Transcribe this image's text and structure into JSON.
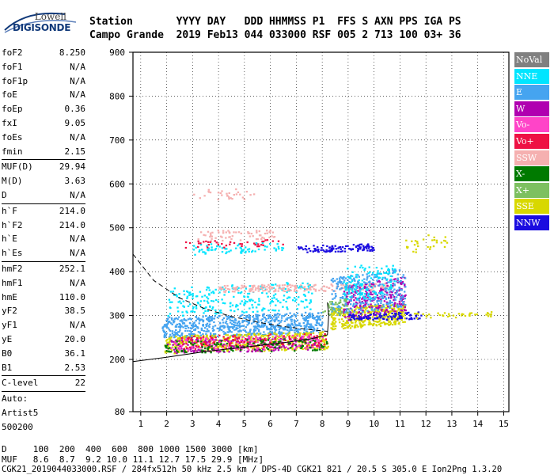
{
  "logo": {
    "line1": "Lowell",
    "line2": "DIGISONDE"
  },
  "header": {
    "row1": "Station       YYYY DAY   DDD HHMMSS P1  FFS S AXN PPS IGA PS",
    "row2": "Campo Grande  2019 Feb13 044 033000 RSF 005 2 713 100 03+ 36"
  },
  "params": [
    [
      {
        "label": "foF2",
        "value": "8.250"
      },
      {
        "label": "foF1",
        "value": "N/A"
      },
      {
        "label": "foF1p",
        "value": "N/A"
      },
      {
        "label": "foE",
        "value": "N/A"
      },
      {
        "label": "foEp",
        "value": "0.36"
      },
      {
        "label": "fxI",
        "value": "9.05"
      },
      {
        "label": "foEs",
        "value": "N/A"
      },
      {
        "label": "fmin",
        "value": "2.15"
      }
    ],
    [
      {
        "label": "MUF(D)",
        "value": "29.94"
      },
      {
        "label": "M(D)",
        "value": "3.63"
      },
      {
        "label": "D",
        "value": "N/A"
      }
    ],
    [
      {
        "label": "h`F",
        "value": "214.0"
      },
      {
        "label": "h`F2",
        "value": "214.0"
      },
      {
        "label": "h`E",
        "value": "N/A"
      },
      {
        "label": "h`Es",
        "value": "N/A"
      }
    ],
    [
      {
        "label": "hmF2",
        "value": "252.1"
      },
      {
        "label": "hmF1",
        "value": "N/A"
      },
      {
        "label": "hmE",
        "value": "110.0"
      },
      {
        "label": "yF2",
        "value": "38.5"
      },
      {
        "label": "yF1",
        "value": "N/A"
      },
      {
        "label": "yE",
        "value": "20.0"
      },
      {
        "label": "B0",
        "value": "36.1"
      },
      {
        "label": "B1",
        "value": "2.53"
      }
    ],
    [
      {
        "label": "C-level",
        "value": "22"
      }
    ],
    [
      {
        "label": "Auto:",
        "value": ""
      },
      {
        "label": "Artist5",
        "value": ""
      },
      {
        "label": "500200",
        "value": ""
      }
    ]
  ],
  "bottom": {
    "d_row": "D     100  200  400  600  800 1000 1500 3000 [km]",
    "muf_row": "MUF   8.6  8.7  9.2 10.0 11.1 12.7 17.5 29.9 [MHz]",
    "footer": "CGK21_2019044033000.RSF / 284fx512h 50 kHz 2.5 km / DPS-4D CGK21 821 / 20.5 S 305.0 E Ion2Png 1.3.20"
  },
  "legend": [
    {
      "label": "NoVal",
      "color": "#808080"
    },
    {
      "label": "NNE",
      "color": "#00e5ff"
    },
    {
      "label": "E",
      "color": "#45a4f0"
    },
    {
      "label": "W",
      "color": "#b000b0"
    },
    {
      "label": "Vo-",
      "color": "#ff44c8"
    },
    {
      "label": "Vo+",
      "color": "#ee1144"
    },
    {
      "label": "SSW",
      "color": "#f5b0b0"
    },
    {
      "label": "X-",
      "color": "#007a00"
    },
    {
      "label": "X+",
      "color": "#7dc060"
    },
    {
      "label": "SSE",
      "color": "#d8d800"
    },
    {
      "label": "NNW",
      "color": "#1a0ce0"
    }
  ],
  "chart_data": {
    "type": "scatter",
    "xlim": [
      0.7,
      15.2
    ],
    "ylim": [
      80,
      900
    ],
    "x_ticks": [
      "1",
      "2",
      "3",
      "4",
      "5",
      "6",
      "7",
      "8",
      "9",
      "10",
      "11",
      "12",
      "13",
      "14",
      "15"
    ],
    "y_ticks": [
      "80",
      "200",
      "300",
      "400",
      "500",
      "600",
      "700",
      "800",
      "900"
    ],
    "grid": true,
    "dashed_curve": [
      [
        0.7,
        440
      ],
      [
        1.5,
        380
      ],
      [
        2.5,
        340
      ],
      [
        3.5,
        315
      ],
      [
        4.5,
        298
      ],
      [
        5.5,
        285
      ],
      [
        6.5,
        275
      ],
      [
        7.5,
        268
      ],
      [
        8.2,
        264
      ]
    ],
    "solid_curve": [
      [
        0.7,
        195
      ],
      [
        2,
        205
      ],
      [
        3.5,
        218
      ],
      [
        5,
        228
      ],
      [
        6.5,
        238
      ],
      [
        7.5,
        246
      ],
      [
        8.2,
        256
      ],
      [
        8.25,
        300
      ],
      [
        8.2,
        330
      ]
    ],
    "clusters": [
      {
        "series": "E",
        "x": [
          1.8,
          8.0
        ],
        "y": [
          250,
          310
        ],
        "n": 700
      },
      {
        "series": "NNE",
        "x": [
          2.0,
          7.6
        ],
        "y": [
          300,
          380
        ],
        "n": 260
      },
      {
        "series": "SSE",
        "x": [
          1.9,
          8.2
        ],
        "y": [
          215,
          265
        ],
        "n": 500
      },
      {
        "series": "W",
        "x": [
          2.0,
          8.0
        ],
        "y": [
          215,
          255
        ],
        "n": 220
      },
      {
        "series": "Vo-",
        "x": [
          2.0,
          8.0
        ],
        "y": [
          218,
          258
        ],
        "n": 160
      },
      {
        "series": "Vo+",
        "x": [
          2.5,
          8.2
        ],
        "y": [
          225,
          262
        ],
        "n": 120
      },
      {
        "series": "X-",
        "x": [
          1.9,
          8.2
        ],
        "y": [
          215,
          250
        ],
        "n": 120
      },
      {
        "series": "SSW",
        "x": [
          4.0,
          10.7
        ],
        "y": [
          355,
          375
        ],
        "n": 220
      },
      {
        "series": "SSE",
        "x": [
          8.3,
          11.2
        ],
        "y": [
          270,
          330
        ],
        "n": 380
      },
      {
        "series": "W",
        "x": [
          8.8,
          11.2
        ],
        "y": [
          290,
          390
        ],
        "n": 240
      },
      {
        "series": "E",
        "x": [
          8.3,
          11.2
        ],
        "y": [
          300,
          410
        ],
        "n": 300
      },
      {
        "series": "NNE",
        "x": [
          8.8,
          10.8
        ],
        "y": [
          330,
          430
        ],
        "n": 120
      },
      {
        "series": "NNW",
        "x": [
          9.0,
          11.8
        ],
        "y": [
          290,
          310
        ],
        "n": 100
      },
      {
        "series": "NNW",
        "x": [
          7.0,
          10.0
        ],
        "y": [
          445,
          465
        ],
        "n": 110
      },
      {
        "series": "NNE",
        "x": [
          3.0,
          6.5
        ],
        "y": [
          440,
          470
        ],
        "n": 70
      },
      {
        "series": "SSW",
        "x": [
          3.0,
          6.2
        ],
        "y": [
          470,
          500
        ],
        "n": 60
      },
      {
        "series": "SSW",
        "x": [
          3.0,
          5.5
        ],
        "y": [
          560,
          595
        ],
        "n": 30
      },
      {
        "series": "SSE",
        "x": [
          11.5,
          14.5
        ],
        "y": [
          295,
          310
        ],
        "n": 40
      },
      {
        "series": "SSE",
        "x": [
          11.2,
          12.8
        ],
        "y": [
          440,
          490
        ],
        "n": 30
      },
      {
        "series": "Vo+",
        "x": [
          2.5,
          6.5
        ],
        "y": [
          455,
          475
        ],
        "n": 40
      },
      {
        "series": "X+",
        "x": [
          8.0,
          9.0
        ],
        "y": [
          300,
          340
        ],
        "n": 40
      }
    ]
  }
}
